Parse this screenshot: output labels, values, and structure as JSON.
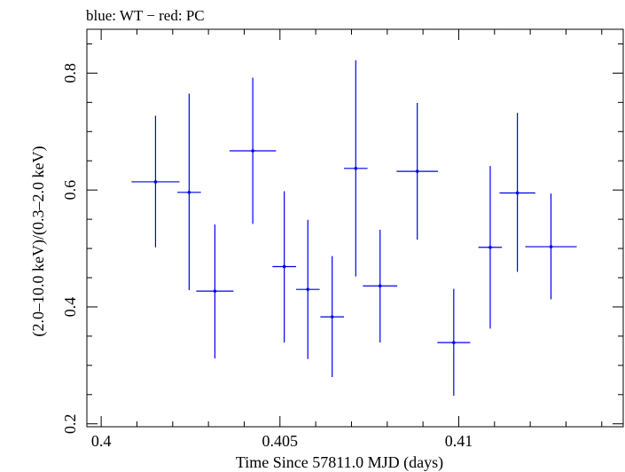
{
  "chart_data": {
    "type": "scatter",
    "title": "blue: WT − red: PC",
    "xlabel": "Time Since 57811.0 MJD (days)",
    "ylabel": "(2.0–10.0 keV)/(0.3–2.0 keV)",
    "xlim": [
      0.3996,
      0.4146
    ],
    "ylim": [
      0.195,
      0.875
    ],
    "x_ticks": [
      {
        "value": 0.4,
        "label": "0.4"
      },
      {
        "value": 0.405,
        "label": "0.405"
      },
      {
        "value": 0.41,
        "label": "0.41"
      }
    ],
    "x_minor_step": 0.001,
    "y_ticks": [
      {
        "value": 0.2,
        "label": "0.2"
      },
      {
        "value": 0.4,
        "label": "0.4"
      },
      {
        "value": 0.6,
        "label": "0.6"
      },
      {
        "value": 0.8,
        "label": "0.8"
      }
    ],
    "y_minor_step": 0.05,
    "grid": false,
    "series": [
      {
        "color": "#0000ee",
        "points": [
          {
            "x": 0.40152,
            "xerr": 0.00067,
            "y": 0.614,
            "yerr_lo": 0.112,
            "yerr_hi": 0.113
          },
          {
            "x": 0.40246,
            "xerr": 0.00033,
            "y": 0.596,
            "yerr_lo": 0.167,
            "yerr_hi": 0.169
          },
          {
            "x": 0.40318,
            "xerr": 0.00052,
            "y": 0.427,
            "yerr_lo": 0.115,
            "yerr_hi": 0.114
          },
          {
            "x": 0.40424,
            "xerr": 0.00065,
            "y": 0.667,
            "yerr_lo": 0.125,
            "yerr_hi": 0.125
          },
          {
            "x": 0.40512,
            "xerr": 0.00033,
            "y": 0.469,
            "yerr_lo": 0.13,
            "yerr_hi": 0.129
          },
          {
            "x": 0.40578,
            "xerr": 0.00033,
            "y": 0.43,
            "yerr_lo": 0.119,
            "yerr_hi": 0.119
          },
          {
            "x": 0.40646,
            "xerr": 0.00033,
            "y": 0.383,
            "yerr_lo": 0.103,
            "yerr_hi": 0.104
          },
          {
            "x": 0.40712,
            "xerr": 0.00033,
            "y": 0.637,
            "yerr_lo": 0.185,
            "yerr_hi": 0.185
          },
          {
            "x": 0.4078,
            "xerr": 0.00048,
            "y": 0.436,
            "yerr_lo": 0.097,
            "yerr_hi": 0.096
          },
          {
            "x": 0.40884,
            "xerr": 0.00058,
            "y": 0.632,
            "yerr_lo": 0.117,
            "yerr_hi": 0.117
          },
          {
            "x": 0.40986,
            "xerr": 0.00046,
            "y": 0.339,
            "yerr_lo": 0.091,
            "yerr_hi": 0.092
          },
          {
            "x": 0.41088,
            "xerr": 0.00033,
            "y": 0.502,
            "yerr_lo": 0.139,
            "yerr_hi": 0.139
          },
          {
            "x": 0.41164,
            "xerr": 0.0005,
            "y": 0.595,
            "yerr_lo": 0.135,
            "yerr_hi": 0.137
          },
          {
            "x": 0.41258,
            "xerr": 0.00072,
            "y": 0.503,
            "yerr_lo": 0.09,
            "yerr_hi": 0.091
          }
        ]
      }
    ]
  }
}
